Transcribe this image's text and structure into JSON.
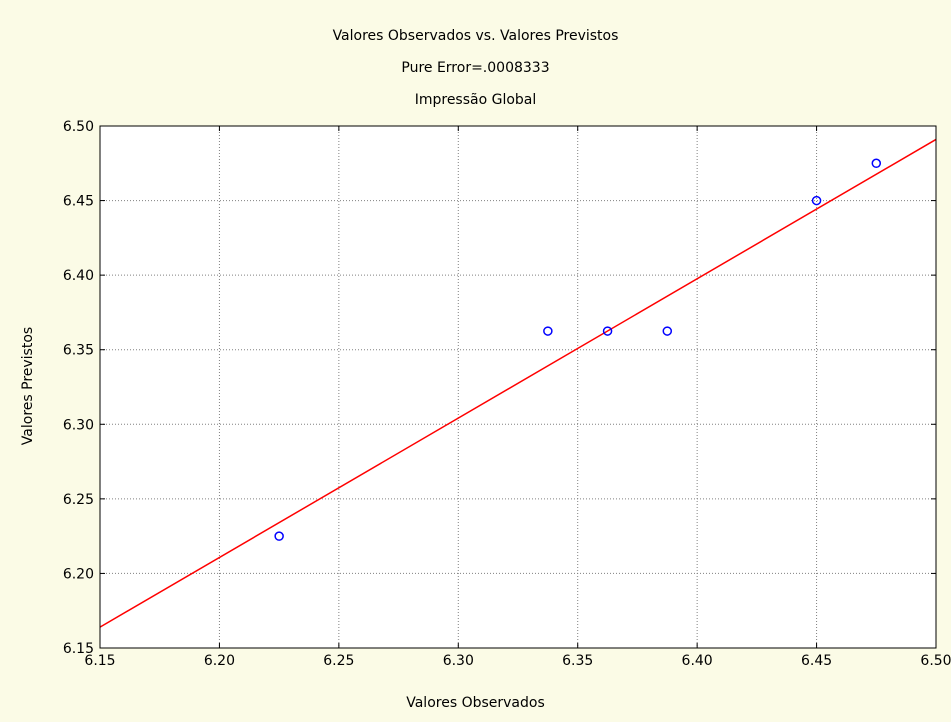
{
  "chart_data": {
    "type": "scatter",
    "title": "Valores Observados vs. Valores Previstos",
    "subtitle": "Pure Error=.0008333",
    "subtitle2": "Impressão Global",
    "xlabel": "Valores Observados",
    "ylabel": "Valores Previstos",
    "xlim": [
      6.15,
      6.5
    ],
    "ylim": [
      6.15,
      6.5
    ],
    "xticks": [
      "6.15",
      "6.20",
      "6.25",
      "6.30",
      "6.35",
      "6.40",
      "6.45",
      "6.50"
    ],
    "yticks": [
      "6.15",
      "6.20",
      "6.25",
      "6.30",
      "6.35",
      "6.40",
      "6.45",
      "6.50"
    ],
    "grid": true,
    "points": [
      {
        "x": 6.225,
        "y": 6.225
      },
      {
        "x": 6.3375,
        "y": 6.3625
      },
      {
        "x": 6.3625,
        "y": 6.3625
      },
      {
        "x": 6.3875,
        "y": 6.3625
      },
      {
        "x": 6.45,
        "y": 6.45
      },
      {
        "x": 6.475,
        "y": 6.475
      }
    ],
    "fit_line": {
      "x": [
        6.15,
        6.5
      ],
      "y": [
        6.164,
        6.491
      ]
    },
    "point_color": "#0000ff",
    "line_color": "#ff0000"
  }
}
